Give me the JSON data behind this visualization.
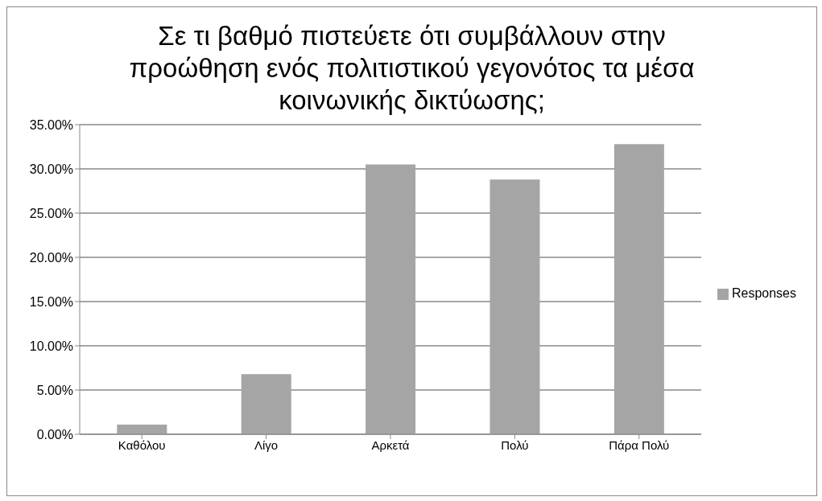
{
  "chart_data": {
    "type": "bar",
    "title": "Σε τι βαθμό πιστεύετε ότι συμβάλλουν στην προώθηση ενός πολιτιστικού γεγονότος τα μέσα κοινωνικής δικτύωσης;",
    "categories": [
      "Καθόλου",
      "Λίγο",
      "Αρκετά",
      "Πολύ",
      "Πάρα Πολύ"
    ],
    "series": [
      {
        "name": "Responses",
        "color": "#a5a5a5",
        "values": [
          1.1,
          6.8,
          30.5,
          28.8,
          32.8
        ]
      }
    ],
    "ylim": [
      0,
      35
    ],
    "yticks": [
      {
        "value": 0,
        "label": "0.00%"
      },
      {
        "value": 5,
        "label": "5.00%"
      },
      {
        "value": 10,
        "label": "10.00%"
      },
      {
        "value": 15,
        "label": "15.00%"
      },
      {
        "value": 20,
        "label": "20.00%"
      },
      {
        "value": 25,
        "label": "25.00%"
      },
      {
        "value": 30,
        "label": "30.00%"
      },
      {
        "value": 35,
        "label": "35.00%"
      }
    ],
    "grid": "y",
    "legend": "right"
  }
}
